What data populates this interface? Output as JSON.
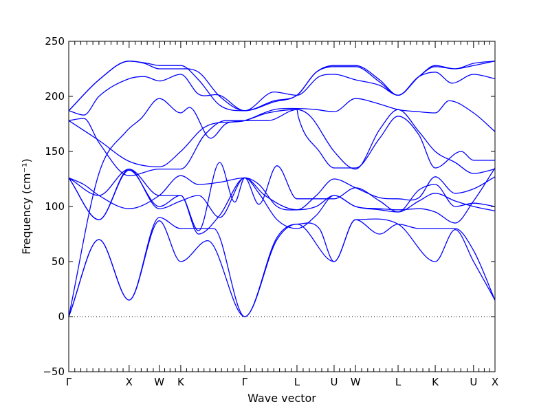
{
  "chart_data": {
    "type": "line",
    "xlabel": "Wave vector",
    "ylabel": "Frequency (cm⁻¹)",
    "ylim": [
      -50,
      250
    ],
    "yticks": [
      -50,
      0,
      50,
      100,
      150,
      200,
      250
    ],
    "xlim": [
      0,
      14.12
    ],
    "zero_line": "dotted",
    "kpoints": [
      {
        "label": "Γ",
        "x": 0
      },
      {
        "label": "X",
        "x": 2.0
      },
      {
        "label": "W",
        "x": 3.0
      },
      {
        "label": "K",
        "x": 3.71
      },
      {
        "label": "Γ",
        "x": 5.83
      },
      {
        "label": "L",
        "x": 7.56
      },
      {
        "label": "U",
        "x": 8.79
      },
      {
        "label": "W",
        "x": 9.5
      },
      {
        "label": "L",
        "x": 10.91
      },
      {
        "label": "K",
        "x": 12.14
      },
      {
        "label": "U",
        "x": 13.41
      },
      {
        "label": "X",
        "x": 14.12
      }
    ],
    "series": [
      {
        "values": [
          [
            0,
            0
          ],
          [
            1.0,
            70
          ],
          [
            2.0,
            15
          ],
          [
            3.0,
            87
          ],
          [
            3.71,
            50
          ],
          [
            4.6,
            69
          ],
          [
            5.83,
            0
          ],
          [
            6.9,
            70
          ],
          [
            7.56,
            84
          ],
          [
            8.79,
            50
          ],
          [
            9.5,
            88
          ],
          [
            10.91,
            84
          ],
          [
            12.14,
            50
          ],
          [
            12.8,
            79
          ],
          [
            13.41,
            50
          ],
          [
            14.12,
            15
          ]
        ]
      },
      {
        "values": [
          [
            0,
            0
          ],
          [
            1.0,
            70
          ],
          [
            2.0,
            15
          ],
          [
            3.0,
            90
          ],
          [
            3.71,
            80
          ],
          [
            4.8,
            80
          ],
          [
            5.83,
            0
          ],
          [
            6.9,
            72
          ],
          [
            7.56,
            84
          ],
          [
            8.3,
            80
          ],
          [
            8.79,
            50
          ],
          [
            9.5,
            88
          ],
          [
            10.3,
            75
          ],
          [
            10.91,
            84
          ],
          [
            11.6,
            80
          ],
          [
            12.14,
            80
          ],
          [
            12.8,
            80
          ],
          [
            13.41,
            60
          ],
          [
            14.12,
            15
          ]
        ]
      },
      {
        "values": [
          [
            0,
            0
          ],
          [
            1.0,
            130
          ],
          [
            1.9,
            168
          ],
          [
            2.4,
            180
          ],
          [
            3.0,
            198
          ],
          [
            3.71,
            185
          ],
          [
            4.0,
            190
          ],
          [
            4.7,
            162
          ],
          [
            5.2,
            175
          ],
          [
            5.83,
            178
          ],
          [
            6.8,
            188
          ],
          [
            7.56,
            189
          ],
          [
            8.2,
            188
          ],
          [
            8.79,
            186
          ],
          [
            9.5,
            198
          ],
          [
            10.3,
            193
          ],
          [
            10.91,
            188
          ],
          [
            11.6,
            186
          ],
          [
            12.14,
            185
          ],
          [
            12.6,
            196
          ],
          [
            13.41,
            185
          ],
          [
            14.12,
            168
          ]
        ]
      },
      {
        "values": [
          [
            0,
            178
          ],
          [
            0.5,
            180
          ],
          [
            1.0,
            158
          ],
          [
            2.0,
            128
          ],
          [
            3.0,
            134
          ],
          [
            3.71,
            134
          ],
          [
            4.5,
            165
          ],
          [
            5.2,
            178
          ],
          [
            5.83,
            178
          ],
          [
            6.6,
            178
          ],
          [
            7.56,
            188
          ],
          [
            7.6,
            182
          ],
          [
            8.3,
            150
          ],
          [
            8.79,
            135
          ],
          [
            9.5,
            135
          ],
          [
            10.3,
            162
          ],
          [
            10.91,
            182
          ],
          [
            11.6,
            165
          ],
          [
            12.14,
            135
          ],
          [
            13.0,
            150
          ],
          [
            13.41,
            142
          ],
          [
            14.12,
            142
          ]
        ]
      },
      {
        "values": [
          [
            0,
            178
          ],
          [
            1.0,
            160
          ],
          [
            2.0,
            141
          ],
          [
            3.0,
            136
          ],
          [
            3.71,
            150
          ],
          [
            4.5,
            172
          ],
          [
            5.83,
            178
          ],
          [
            6.6,
            185
          ],
          [
            7.56,
            188
          ],
          [
            8.0,
            182
          ],
          [
            8.79,
            150
          ],
          [
            9.5,
            134
          ],
          [
            10.3,
            170
          ],
          [
            10.91,
            188
          ],
          [
            11.6,
            168
          ],
          [
            12.14,
            150
          ],
          [
            12.8,
            140
          ],
          [
            13.41,
            130
          ],
          [
            14.12,
            134
          ]
        ]
      },
      {
        "values": [
          [
            0,
            187
          ],
          [
            0.5,
            183
          ],
          [
            1.0,
            200
          ],
          [
            2.0,
            216
          ],
          [
            2.5,
            218
          ],
          [
            3.0,
            214
          ],
          [
            3.71,
            220
          ],
          [
            4.3,
            202
          ],
          [
            5.0,
            201
          ],
          [
            5.83,
            187
          ],
          [
            6.8,
            204
          ],
          [
            7.56,
            201
          ],
          [
            8.3,
            218
          ],
          [
            8.79,
            220
          ],
          [
            9.5,
            215
          ],
          [
            10.3,
            210
          ],
          [
            10.91,
            201
          ],
          [
            11.6,
            218
          ],
          [
            12.14,
            222
          ],
          [
            12.7,
            212
          ],
          [
            13.41,
            220
          ],
          [
            14.12,
            216
          ]
        ]
      },
      {
        "values": [
          [
            0,
            187
          ],
          [
            1.0,
            215
          ],
          [
            2.0,
            232
          ],
          [
            2.5,
            230
          ],
          [
            3.0,
            225
          ],
          [
            3.71,
            225
          ],
          [
            4.3,
            222
          ],
          [
            5.0,
            200
          ],
          [
            5.83,
            187
          ],
          [
            6.8,
            195
          ],
          [
            7.56,
            201
          ],
          [
            8.2,
            222
          ],
          [
            8.79,
            228
          ],
          [
            9.5,
            228
          ],
          [
            10.3,
            215
          ],
          [
            10.91,
            201
          ],
          [
            11.6,
            218
          ],
          [
            12.14,
            228
          ],
          [
            12.8,
            225
          ],
          [
            13.41,
            228
          ],
          [
            14.12,
            232
          ]
        ]
      },
      {
        "values": [
          [
            0,
            187
          ],
          [
            1.0,
            215
          ],
          [
            2.0,
            232
          ],
          [
            2.6,
            230
          ],
          [
            3.0,
            228
          ],
          [
            3.71,
            228
          ],
          [
            4.3,
            215
          ],
          [
            5.0,
            192
          ],
          [
            5.83,
            187
          ],
          [
            6.8,
            196
          ],
          [
            7.56,
            201
          ],
          [
            8.2,
            222
          ],
          [
            8.79,
            227
          ],
          [
            9.5,
            227
          ],
          [
            10.3,
            213
          ],
          [
            10.91,
            201
          ],
          [
            11.6,
            218
          ],
          [
            12.14,
            227
          ],
          [
            12.8,
            225
          ],
          [
            13.41,
            230
          ],
          [
            14.12,
            232
          ]
        ]
      },
      {
        "values": [
          [
            0,
            126
          ],
          [
            0.5,
            120
          ],
          [
            1.0,
            110
          ],
          [
            2.0,
            98
          ],
          [
            3.0,
            110
          ],
          [
            3.71,
            128
          ],
          [
            4.3,
            120
          ],
          [
            5.0,
            122
          ],
          [
            5.83,
            126
          ],
          [
            6.5,
            110
          ],
          [
            7.56,
            97
          ],
          [
            8.2,
            110
          ],
          [
            8.79,
            125
          ],
          [
            9.5,
            117
          ],
          [
            10.3,
            108
          ],
          [
            10.91,
            107
          ],
          [
            11.6,
            108
          ],
          [
            12.14,
            127
          ],
          [
            12.8,
            112
          ],
          [
            13.41,
            116
          ],
          [
            14.12,
            127
          ]
        ]
      },
      {
        "values": [
          [
            0,
            126
          ],
          [
            1.0,
            88
          ],
          [
            2.0,
            133
          ],
          [
            3.0,
            100
          ],
          [
            3.71,
            110
          ],
          [
            4.3,
            78
          ],
          [
            5.0,
            140
          ],
          [
            5.5,
            104
          ],
          [
            5.83,
            126
          ],
          [
            6.3,
            102
          ],
          [
            6.9,
            137
          ],
          [
            7.56,
            107
          ],
          [
            8.79,
            107
          ],
          [
            9.5,
            117
          ],
          [
            10.3,
            105
          ],
          [
            10.91,
            95
          ],
          [
            11.6,
            105
          ],
          [
            12.14,
            112
          ],
          [
            12.8,
            105
          ],
          [
            13.41,
            100
          ],
          [
            14.12,
            96
          ]
        ]
      },
      {
        "values": [
          [
            0,
            126
          ],
          [
            1.0,
            88
          ],
          [
            2.0,
            134
          ],
          [
            3.0,
            98
          ],
          [
            3.71,
            105
          ],
          [
            4.3,
            110
          ],
          [
            5.0,
            90
          ],
          [
            5.83,
            126
          ],
          [
            6.3,
            112
          ],
          [
            6.9,
            88
          ],
          [
            7.56,
            80
          ],
          [
            8.2,
            92
          ],
          [
            8.79,
            110
          ],
          [
            9.5,
            100
          ],
          [
            10.3,
            97
          ],
          [
            10.91,
            95
          ],
          [
            11.6,
            115
          ],
          [
            12.14,
            120
          ],
          [
            12.8,
            100
          ],
          [
            13.41,
            103
          ],
          [
            14.12,
            100
          ]
        ]
      },
      {
        "values": [
          [
            0,
            126
          ],
          [
            1.0,
            110
          ],
          [
            2.0,
            134
          ],
          [
            3.0,
            110
          ],
          [
            3.71,
            110
          ],
          [
            4.3,
            75
          ],
          [
            5.0,
            92
          ],
          [
            5.83,
            126
          ],
          [
            6.3,
            120
          ],
          [
            6.9,
            100
          ],
          [
            7.56,
            97
          ],
          [
            8.2,
            100
          ],
          [
            8.79,
            110
          ],
          [
            9.5,
            100
          ],
          [
            10.3,
            98
          ],
          [
            10.91,
            97
          ],
          [
            11.6,
            98
          ],
          [
            12.14,
            95
          ],
          [
            12.8,
            85
          ],
          [
            13.41,
            105
          ],
          [
            14.12,
            135
          ]
        ]
      }
    ]
  }
}
